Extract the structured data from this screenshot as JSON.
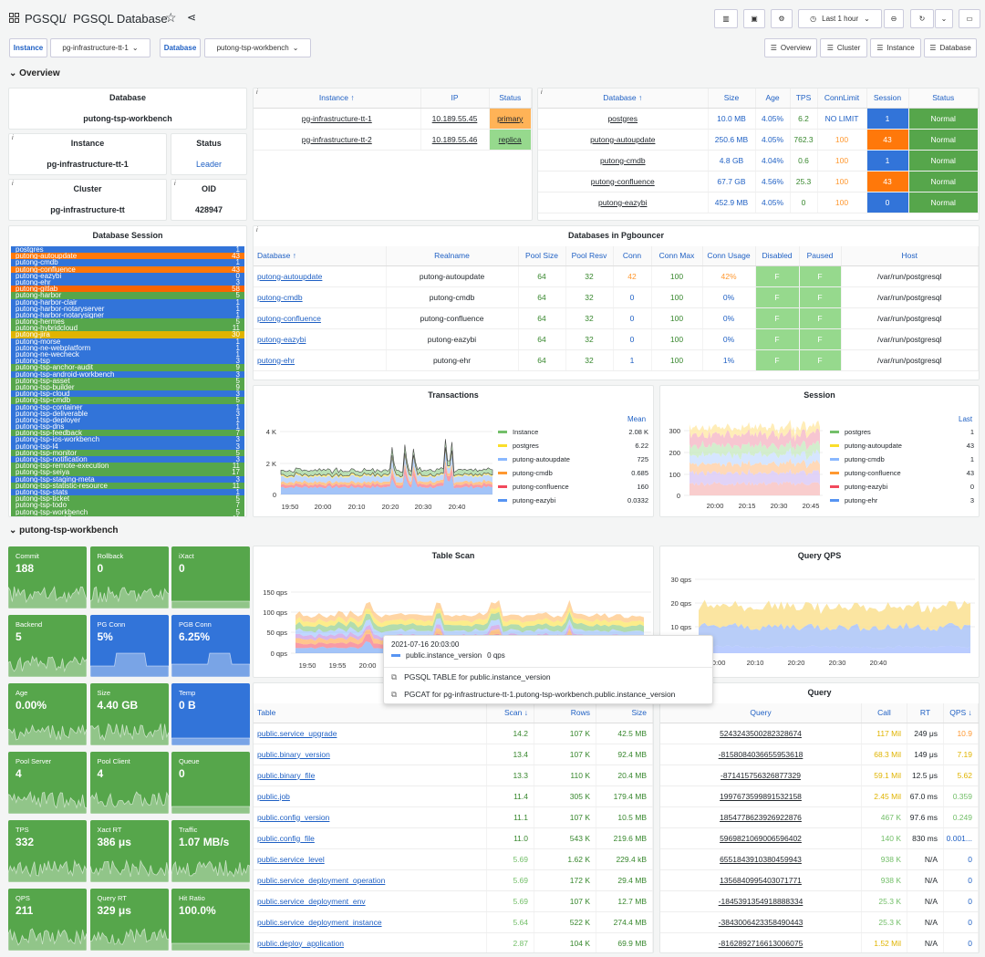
{
  "header": {
    "breadcrumb_root": "PGSQL",
    "breadcrumb_sep": "/",
    "title": "PGSQL Database",
    "time_range": "Last 1 hour"
  },
  "vars": {
    "instance_label": "Instance",
    "instance_value": "pg-infrastructure-tt-1",
    "database_label": "Database",
    "database_value": "putong-tsp-workbench"
  },
  "links": [
    "Overview",
    "Cluster",
    "Instance",
    "Database"
  ],
  "sections": {
    "overview": "Overview",
    "db": "putong-tsp-workbench"
  },
  "info": {
    "database_title": "Database",
    "database_value": "putong-tsp-workbench",
    "instance_title": "Instance",
    "instance_value": "pg-infrastructure-tt-1",
    "status_title": "Status",
    "status_value": "Leader",
    "cluster_title": "Cluster",
    "cluster_value": "pg-infrastructure-tt",
    "oid_title": "OID",
    "oid_value": "428947"
  },
  "instances": {
    "headers": [
      "Instance ↑",
      "IP",
      "Status"
    ],
    "rows": [
      {
        "name": "pg-infrastructure-tt-1",
        "ip": "10.189.55.45",
        "status": "primary"
      },
      {
        "name": "pg-infrastructure-tt-2",
        "ip": "10.189.55.46",
        "status": "replica"
      }
    ]
  },
  "dbtable": {
    "headers": [
      "Database ↑",
      "Size",
      "Age",
      "TPS",
      "ConnLimit",
      "Session",
      "Status"
    ],
    "rows": [
      {
        "db": "postgres",
        "size": "10.0 MB",
        "age": "4.05%",
        "tps": "6.2",
        "limit": "NO LIMIT",
        "session": "1",
        "status": "Normal",
        "sc": "bg-blue"
      },
      {
        "db": "putong-autoupdate",
        "size": "250.6 MB",
        "age": "4.05%",
        "tps": "762.3",
        "limit": "100",
        "session": "43",
        "status": "Normal",
        "sc": "bg-orange"
      },
      {
        "db": "putong-cmdb",
        "size": "4.8 GB",
        "age": "4.04%",
        "tps": "0.6",
        "limit": "100",
        "session": "1",
        "status": "Normal",
        "sc": "bg-blue"
      },
      {
        "db": "putong-confluence",
        "size": "67.7 GB",
        "age": "4.56%",
        "tps": "25.3",
        "limit": "100",
        "session": "43",
        "status": "Normal",
        "sc": "bg-orange"
      },
      {
        "db": "putong-eazybi",
        "size": "452.9 MB",
        "age": "4.05%",
        "tps": "0",
        "limit": "100",
        "session": "0",
        "status": "Normal",
        "sc": "bg-blue"
      }
    ]
  },
  "dbsession": {
    "title": "Database Session",
    "rows": [
      {
        "n": "postgres",
        "v": "1",
        "c": "#3274d9"
      },
      {
        "n": "putong-autoupdate",
        "v": "43",
        "c": "#ff780a"
      },
      {
        "n": "putong-cmdb",
        "v": "1",
        "c": "#3274d9"
      },
      {
        "n": "putong-confluence",
        "v": "43",
        "c": "#ff780a"
      },
      {
        "n": "putong-eazybi",
        "v": "0",
        "c": "#3274d9"
      },
      {
        "n": "putong-ehr",
        "v": "3",
        "c": "#3274d9"
      },
      {
        "n": "putong-gitlab",
        "v": "58",
        "c": "#fa6400"
      },
      {
        "n": "putong-harbor",
        "v": "5",
        "c": "#56a64b"
      },
      {
        "n": "putong-harbor-clair",
        "v": "1",
        "c": "#3274d9"
      },
      {
        "n": "putong-harbor-notaryserver",
        "v": "1",
        "c": "#3274d9"
      },
      {
        "n": "putong-harbor-notarysigner",
        "v": "1",
        "c": "#3274d9"
      },
      {
        "n": "putong-hermes",
        "v": "5",
        "c": "#56a64b"
      },
      {
        "n": "putong-hybridcloud",
        "v": "11",
        "c": "#56a64b"
      },
      {
        "n": "putong-jira",
        "v": "30",
        "c": "#e0b400"
      },
      {
        "n": "putong-morse",
        "v": "1",
        "c": "#3274d9"
      },
      {
        "n": "putong-ne-webplatform",
        "v": "1",
        "c": "#3274d9"
      },
      {
        "n": "putong-ne-wecheck",
        "v": "1",
        "c": "#3274d9"
      },
      {
        "n": "putong-tsp",
        "v": "3",
        "c": "#3274d9"
      },
      {
        "n": "putong-tsp-anchor-audit",
        "v": "9",
        "c": "#56a64b"
      },
      {
        "n": "putong-tsp-android-workbench",
        "v": "3",
        "c": "#3274d9"
      },
      {
        "n": "putong-tsp-asset",
        "v": "5",
        "c": "#56a64b"
      },
      {
        "n": "putong-tsp-builder",
        "v": "9",
        "c": "#56a64b"
      },
      {
        "n": "putong-tsp-cloud",
        "v": "3",
        "c": "#3274d9"
      },
      {
        "n": "putong-tsp-cmdb",
        "v": "5",
        "c": "#56a64b"
      },
      {
        "n": "putong-tsp-container",
        "v": "1",
        "c": "#3274d9"
      },
      {
        "n": "putong-tsp-deliverable",
        "v": "3",
        "c": "#3274d9"
      },
      {
        "n": "putong-tsp-deployer",
        "v": "1",
        "c": "#3274d9"
      },
      {
        "n": "putong-tsp-dns",
        "v": "1",
        "c": "#3274d9"
      },
      {
        "n": "putong-tsp-feedback",
        "v": "7",
        "c": "#56a64b"
      },
      {
        "n": "putong-tsp-ios-workbench",
        "v": "3",
        "c": "#3274d9"
      },
      {
        "n": "putong-tsp-l4",
        "v": "3",
        "c": "#3274d9"
      },
      {
        "n": "putong-tsp-monitor",
        "v": "5",
        "c": "#56a64b"
      },
      {
        "n": "putong-tsp-notification",
        "v": "3",
        "c": "#3274d9"
      },
      {
        "n": "putong-tsp-remote-execution",
        "v": "11",
        "c": "#56a64b"
      },
      {
        "n": "putong-tsp-seiya",
        "v": "17",
        "c": "#56a64b"
      },
      {
        "n": "putong-tsp-staging-meta",
        "v": "3",
        "c": "#3274d9"
      },
      {
        "n": "putong-tsp-statistic-resource",
        "v": "11",
        "c": "#56a64b"
      },
      {
        "n": "putong-tsp-stats",
        "v": "1",
        "c": "#3274d9"
      },
      {
        "n": "putong-tsp-ticket",
        "v": "5",
        "c": "#56a64b"
      },
      {
        "n": "putong-tsp-todo",
        "v": "7",
        "c": "#56a64b"
      },
      {
        "n": "putong-tsp-workbench",
        "v": "5",
        "c": "#56a64b"
      },
      {
        "n": "putong-tsp-workflow",
        "v": "11",
        "c": "#56a64b"
      }
    ]
  },
  "pgbouncer": {
    "title": "Databases in Pgbouncer",
    "headers": [
      "Database ↑",
      "Realname",
      "Pool Size",
      "Pool Resv",
      "Conn",
      "Conn Max",
      "Conn Usage",
      "Disabled",
      "Paused",
      "Host"
    ],
    "rows": [
      {
        "db": "putong-autoupdate",
        "real": "putong-autoupdate",
        "ps": "64",
        "pr": "32",
        "conn": "42",
        "max": "100",
        "usage": "42%",
        "dis": "F",
        "pau": "F",
        "host": "/var/run/postgresql",
        "cc": "orange"
      },
      {
        "db": "putong-cmdb",
        "real": "putong-cmdb",
        "ps": "64",
        "pr": "32",
        "conn": "0",
        "max": "100",
        "usage": "0%",
        "dis": "F",
        "pau": "F",
        "host": "/var/run/postgresql",
        "cc": "blue"
      },
      {
        "db": "putong-confluence",
        "real": "putong-confluence",
        "ps": "64",
        "pr": "32",
        "conn": "0",
        "max": "100",
        "usage": "0%",
        "dis": "F",
        "pau": "F",
        "host": "/var/run/postgresql",
        "cc": "blue"
      },
      {
        "db": "putong-eazybi",
        "real": "putong-eazybi",
        "ps": "64",
        "pr": "32",
        "conn": "0",
        "max": "100",
        "usage": "0%",
        "dis": "F",
        "pau": "F",
        "host": "/var/run/postgresql",
        "cc": "blue"
      },
      {
        "db": "putong-ehr",
        "real": "putong-ehr",
        "ps": "64",
        "pr": "32",
        "conn": "1",
        "max": "100",
        "usage": "1%",
        "dis": "F",
        "pau": "F",
        "host": "/var/run/postgresql",
        "cc": "blue"
      }
    ]
  },
  "transactions": {
    "title": "Transactions",
    "legend_header": "Mean",
    "yticks": [
      "4 K",
      "2 K",
      "0"
    ],
    "xticks": [
      "19:50",
      "20:00",
      "20:10",
      "20:20",
      "20:30",
      "20:40"
    ],
    "legend": [
      {
        "n": "Instance",
        "v": "2.08 K",
        "c": "#73bf69"
      },
      {
        "n": "postgres",
        "v": "6.22",
        "c": "#fade2a"
      },
      {
        "n": "putong-autoupdate",
        "v": "725",
        "c": "#8ab8ff"
      },
      {
        "n": "putong-cmdb",
        "v": "0.685",
        "c": "#ff9830"
      },
      {
        "n": "putong-confluence",
        "v": "160",
        "c": "#f2495c"
      },
      {
        "n": "putong-eazybi",
        "v": "0.0332",
        "c": "#5794f2"
      }
    ]
  },
  "session": {
    "title": "Session",
    "legend_header": "Last",
    "yticks": [
      "300",
      "200",
      "100",
      "0"
    ],
    "xticks": [
      "20:00",
      "20:15",
      "20:30",
      "20:45"
    ],
    "legend": [
      {
        "n": "postgres",
        "v": "1",
        "c": "#73bf69"
      },
      {
        "n": "putong-autoupdate",
        "v": "43",
        "c": "#fade2a"
      },
      {
        "n": "putong-cmdb",
        "v": "1",
        "c": "#8ab8ff"
      },
      {
        "n": "putong-confluence",
        "v": "43",
        "c": "#ff9830"
      },
      {
        "n": "putong-eazybi",
        "v": "0",
        "c": "#f2495c"
      },
      {
        "n": "putong-ehr",
        "v": "3",
        "c": "#5794f2"
      }
    ]
  },
  "stats": [
    {
      "t": "Commit",
      "v": "188",
      "c": "#56a64b"
    },
    {
      "t": "Rollback",
      "v": "0",
      "c": "#56a64b"
    },
    {
      "t": "iXact",
      "v": "0",
      "c": "#56a64b"
    },
    {
      "t": "Backend",
      "v": "5",
      "c": "#56a64b"
    },
    {
      "t": "PG Conn",
      "v": "5%",
      "c": "#3274d9"
    },
    {
      "t": "PGB Conn",
      "v": "6.25%",
      "c": "#3274d9"
    },
    {
      "t": "Age",
      "v": "0.00%",
      "c": "#56a64b"
    },
    {
      "t": "Size",
      "v": "4.40 GB",
      "c": "#56a64b"
    },
    {
      "t": "Temp",
      "v": "0 B",
      "c": "#3274d9"
    },
    {
      "t": "Pool Server",
      "v": "4",
      "c": "#56a64b"
    },
    {
      "t": "Pool Client",
      "v": "4",
      "c": "#56a64b"
    },
    {
      "t": "Queue",
      "v": "0",
      "c": "#56a64b"
    },
    {
      "t": "TPS",
      "v": "332",
      "c": "#56a64b"
    },
    {
      "t": "Xact RT",
      "v": "386 μs",
      "c": "#56a64b"
    },
    {
      "t": "Traffic",
      "v": "1.07 MB/s",
      "c": "#56a64b"
    },
    {
      "t": "QPS",
      "v": "211",
      "c": "#56a64b"
    },
    {
      "t": "Query RT",
      "v": "329 μs",
      "c": "#56a64b"
    },
    {
      "t": "Hit Ratio",
      "v": "100.0%",
      "c": "#56a64b"
    }
  ],
  "tablescan": {
    "title": "Table Scan",
    "yticks": [
      "150 qps",
      "100 qps",
      "50 qps",
      "0 qps"
    ],
    "xticks": [
      "19:50",
      "19:55",
      "20:00"
    ]
  },
  "tooltip": {
    "time": "2021-07-16 20:03:00",
    "series": "public.instance_version",
    "value": "0 qps",
    "link1": "PGSQL TABLE for public.instance_version",
    "link2": "PGCAT for pg-infrastructure-tt-1.putong-tsp-workbench.public.instance_version"
  },
  "queryqps": {
    "title": "Query QPS",
    "yticks": [
      "30 qps",
      "20 qps",
      "10 qps"
    ],
    "xticks": [
      "20:00",
      "20:10",
      "20:20",
      "20:30",
      "20:40"
    ]
  },
  "tables": {
    "headers": [
      "Table",
      "Scan ↓",
      "Rows",
      "Size"
    ],
    "rows": [
      {
        "t": "public.service_upgrade",
        "s": "14.2",
        "r": "107 K",
        "z": "42.5 MB"
      },
      {
        "t": "public.binary_version",
        "s": "13.4",
        "r": "107 K",
        "z": "92.4 MB"
      },
      {
        "t": "public.binary_file",
        "s": "13.3",
        "r": "110 K",
        "z": "20.4 MB"
      },
      {
        "t": "public.job",
        "s": "11.4",
        "r": "305 K",
        "z": "179.4 MB"
      },
      {
        "t": "public.config_version",
        "s": "11.1",
        "r": "107 K",
        "z": "10.5 MB"
      },
      {
        "t": "public.config_file",
        "s": "11.0",
        "r": "543 K",
        "z": "219.6 MB"
      },
      {
        "t": "public.service_level",
        "s": "5.69",
        "r": "1.62 K",
        "z": "229.4 kB"
      },
      {
        "t": "public.service_deployment_operation",
        "s": "5.69",
        "r": "172 K",
        "z": "29.4 MB"
      },
      {
        "t": "public.service_deployment_env",
        "s": "5.69",
        "r": "107 K",
        "z": "12.7 MB"
      },
      {
        "t": "public.service_deployment_instance",
        "s": "5.64",
        "r": "522 K",
        "z": "274.4 MB"
      },
      {
        "t": "public.deploy_application",
        "s": "2.87",
        "r": "104 K",
        "z": "69.9 MB"
      }
    ]
  },
  "queries": {
    "title": "Query",
    "headers": [
      "Query",
      "Call",
      "RT",
      "QPS ↓"
    ],
    "rows": [
      {
        "q": "5243243500282328674",
        "c": "117 Mil",
        "rt": "249 μs",
        "qps": "10.9",
        "cc": "yellow",
        "qc": "orange"
      },
      {
        "q": "-8158084036655953618",
        "c": "68.3 Mil",
        "rt": "149 μs",
        "qps": "7.19",
        "cc": "yellow",
        "qc": "yellow"
      },
      {
        "q": "-871415756326877329",
        "c": "59.1 Mil",
        "rt": "12.5 μs",
        "qps": "5.62",
        "cc": "yellow",
        "qc": "yellow"
      },
      {
        "q": "1997673599891532158",
        "c": "2.45 Mil",
        "rt": "67.0 ms",
        "qps": "0.359",
        "cc": "yellow",
        "qc": "lgreen"
      },
      {
        "q": "1854778623926922876",
        "c": "467 K",
        "rt": "97.6 ms",
        "qps": "0.249",
        "cc": "lgreen",
        "qc": "lgreen"
      },
      {
        "q": "5969821069006596402",
        "c": "140 K",
        "rt": "830 ms",
        "qps": "0.001...",
        "cc": "lgreen",
        "qc": "blue"
      },
      {
        "q": "6551843910380459943",
        "c": "938 K",
        "rt": "N/A",
        "qps": "0",
        "cc": "lgreen",
        "qc": "blue"
      },
      {
        "q": "1356840995403071771",
        "c": "938 K",
        "rt": "N/A",
        "qps": "0",
        "cc": "lgreen",
        "qc": "blue"
      },
      {
        "q": "-1845391354918888334",
        "c": "25.3 K",
        "rt": "N/A",
        "qps": "0",
        "cc": "lgreen",
        "qc": "blue"
      },
      {
        "q": "-3843006423358490443",
        "c": "25.3 K",
        "rt": "N/A",
        "qps": "0",
        "cc": "lgreen",
        "qc": "blue"
      },
      {
        "q": "-8162892716613006075",
        "c": "1.52 Mil",
        "rt": "N/A",
        "qps": "0",
        "cc": "yellow",
        "qc": "blue"
      }
    ]
  }
}
